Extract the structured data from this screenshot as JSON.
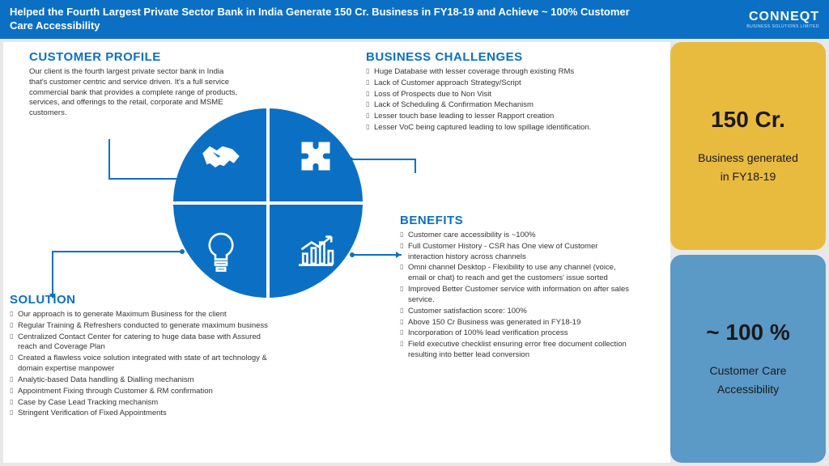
{
  "header": {
    "title": "Helped the Fourth Largest Private Sector Bank in India Generate 150 Cr. Business in FY18-19 and Achieve ~ 100% Customer Care Accessibility",
    "logo": "CONNEQT",
    "logo_sub": "BUSINESS SOLUTIONS LIMITED"
  },
  "profile": {
    "title": "CUSTOMER PROFILE",
    "text": "Our client is the fourth largest private sector bank in India that's customer centric and service driven. It's a full service commercial bank that provides a complete range of products, services, and offerings to the retail, corporate and MSME customers."
  },
  "challenges": {
    "title": "BUSINESS CHALLENGES",
    "items": [
      "Huge Database with lesser coverage through existing RMs",
      "Lack of Customer approach Strategy/Script",
      "Loss of Prospects due to Non Visit",
      "Lack of Scheduling & Confirmation Mechanism",
      "Lesser touch base leading to lesser Rapport creation",
      "Lesser VoC being captured leading to low spillage identification."
    ]
  },
  "solution": {
    "title": "SOLUTION",
    "items": [
      "Our approach is to generate Maximum Business for the client",
      "Regular Training & Refreshers conducted to generate maximum business",
      "Centralized Contact Center for catering to huge data base with Assured reach and Coverage Plan",
      "Created a flawless voice solution integrated with state of art technology & domain expertise manpower",
      "Analytic-based Data handling & Dialling mechanism",
      "Appointment Fixing  through Customer & RM  confirmation",
      "Case by Case Lead Tracking mechanism",
      "Stringent Verification of Fixed Appointments"
    ]
  },
  "benefits": {
    "title": "BENEFITS",
    "items": [
      "Customer care accessibility is ~100%",
      "Full Customer History - CSR has One view of Customer interaction history across channels",
      "Omni channel Desktop - Flexibility to use any channel (voice, email or chat) to reach and get the customers' issue sorted",
      "Improved Better Customer service with information on after sales service.",
      "Customer satisfaction score: 100%",
      "Above 150 Cr Business was generated in FY18-19",
      "Incorporation of 100% lead verification process",
      "Field executive checklist ensuring error free document collection resulting into better lead conversion"
    ]
  },
  "metrics": {
    "card1_big": "150 Cr.",
    "card1_sub1": "Business generated",
    "card1_sub2": "in FY18-19",
    "card2_big": "~ 100 %",
    "card2_sub1": "Customer Care",
    "card2_sub2": "Accessibility"
  },
  "colors": {
    "primary": "#0b70c4",
    "gold": "#e8bb3f",
    "blue_soft": "#5b99c7",
    "bg": "#e8e8e8"
  }
}
